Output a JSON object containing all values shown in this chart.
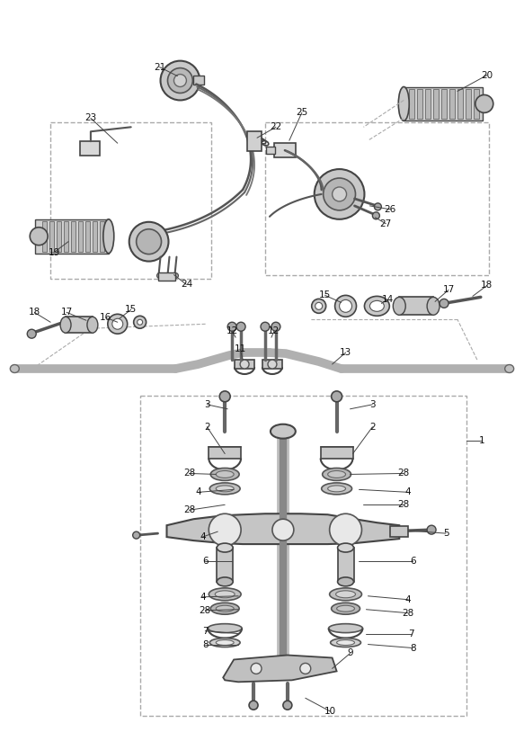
{
  "bg_color": "#ffffff",
  "fig_width": 5.83,
  "fig_height": 8.24,
  "dpi": 100,
  "line_color": "#333333",
  "dark": "#222222",
  "mid": "#888888",
  "light": "#cccccc",
  "lighter": "#e0e0e0"
}
